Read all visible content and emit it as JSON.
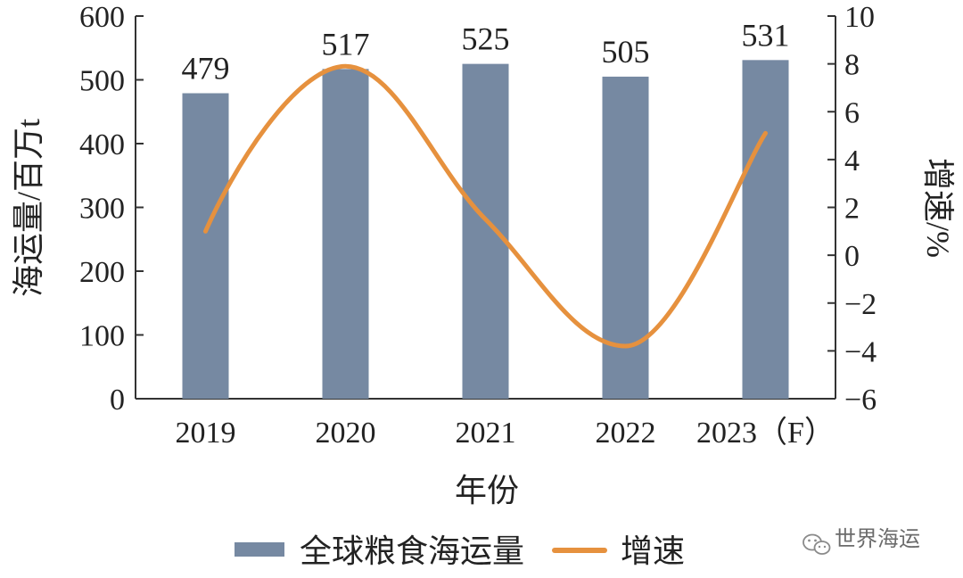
{
  "chart_data": {
    "type": "bar",
    "categories": [
      "2019",
      "2020",
      "2021",
      "2022",
      "2023（F）"
    ],
    "series": [
      {
        "name": "全球粮食海运量",
        "type": "bar",
        "axis": "left",
        "values": [
          479,
          517,
          525,
          505,
          531
        ],
        "color": "#7689a2"
      },
      {
        "name": "增速",
        "type": "line",
        "axis": "right",
        "values": [
          1.0,
          7.9,
          1.5,
          -3.8,
          5.1
        ],
        "color": "#e6913e"
      }
    ],
    "data_labels": [
      "479",
      "517",
      "525",
      "505",
      "531"
    ],
    "xlabel": "年份",
    "ylabel": "海运量/百万t",
    "y2label": "增速/%",
    "ylim": [
      0,
      600
    ],
    "y2lim": [
      -6,
      10
    ],
    "yticks": [
      0,
      100,
      200,
      300,
      400,
      500,
      600
    ],
    "y2ticks": [
      -6,
      -4,
      -2,
      0,
      2,
      4,
      6,
      8,
      10
    ],
    "y2ticklabels": [
      "−6",
      "−4",
      "−2",
      "0",
      "2",
      "4",
      "6",
      "8",
      "10"
    ],
    "line_smooth": true,
    "grid": false,
    "legend_position": "bottom"
  },
  "watermark": {
    "icon": "wechat-icon",
    "text": "世界海运"
  }
}
